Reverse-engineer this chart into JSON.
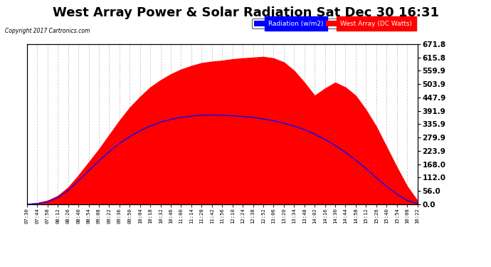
{
  "title": "West Array Power & Solar Radiation Sat Dec 30 16:31",
  "copyright": "Copyright 2017 Cartronics.com",
  "legend_radiation": "Radiation (w/m2)",
  "legend_west": "West Array (DC Watts)",
  "ylabel_right_ticks": [
    0.0,
    56.0,
    112.0,
    168.0,
    223.9,
    279.9,
    335.9,
    391.9,
    447.9,
    503.9,
    559.9,
    615.8,
    671.8
  ],
  "ymin": 0.0,
  "ymax": 671.8,
  "background_color": "#ffffff",
  "plot_bg_color": "#ffffff",
  "grid_color": "#aaaaaa",
  "title_color": "#000000",
  "title_fontsize": 13,
  "x_tick_labels": [
    "07:30",
    "07:44",
    "07:58",
    "08:12",
    "08:26",
    "08:40",
    "08:54",
    "09:08",
    "09:22",
    "09:36",
    "09:50",
    "10:04",
    "10:18",
    "10:32",
    "10:46",
    "11:00",
    "11:14",
    "11:28",
    "11:42",
    "11:56",
    "12:10",
    "12:24",
    "12:38",
    "12:52",
    "13:06",
    "13:20",
    "13:34",
    "13:48",
    "14:02",
    "14:16",
    "14:30",
    "14:44",
    "14:58",
    "15:12",
    "15:26",
    "15:40",
    "15:54",
    "16:08",
    "16:22"
  ],
  "red_fill_color": "#ff0000",
  "blue_line_color": "#0000ff",
  "red_area_values": [
    0,
    5,
    15,
    35,
    70,
    120,
    175,
    230,
    290,
    350,
    405,
    450,
    490,
    520,
    545,
    565,
    580,
    592,
    598,
    602,
    608,
    612,
    615,
    618,
    612,
    595,
    560,
    510,
    455,
    485,
    510,
    490,
    455,
    395,
    325,
    240,
    155,
    75,
    15
  ],
  "blue_line_values": [
    0,
    3,
    10,
    28,
    58,
    98,
    140,
    182,
    220,
    255,
    283,
    308,
    328,
    344,
    356,
    364,
    370,
    373,
    374,
    373,
    371,
    368,
    364,
    358,
    350,
    340,
    328,
    313,
    294,
    272,
    247,
    218,
    185,
    150,
    112,
    75,
    42,
    16,
    3
  ]
}
